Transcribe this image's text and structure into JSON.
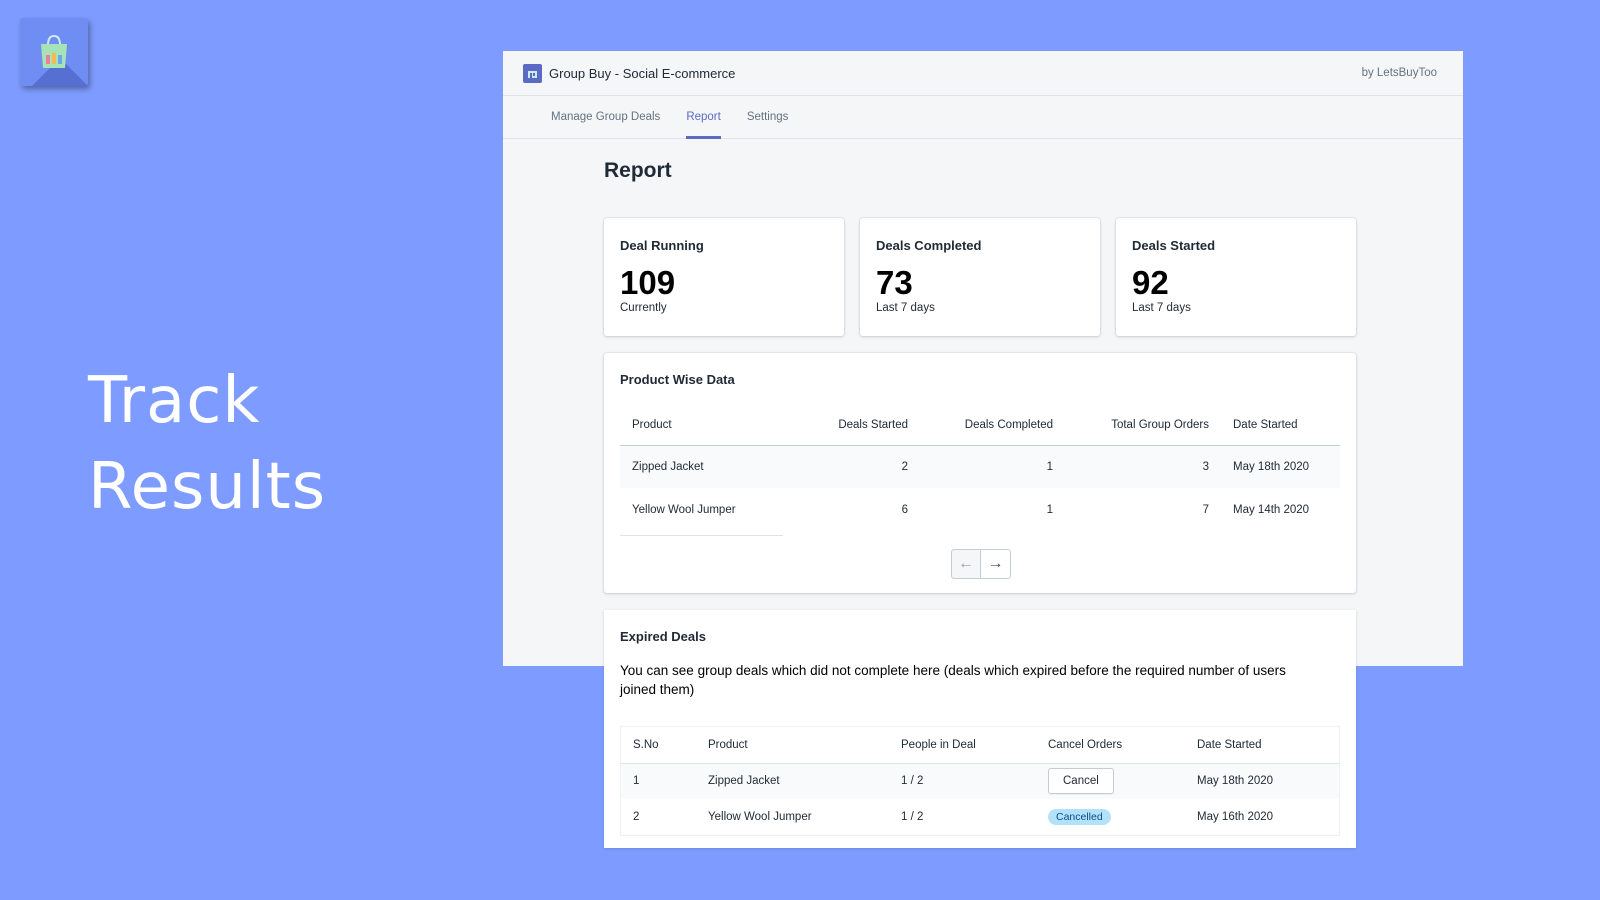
{
  "hero": {
    "line1": "Track",
    "line2": "Results"
  },
  "app": {
    "title": "Group Buy - Social E-commerce",
    "by": "by LetsBuyToo"
  },
  "tabs": [
    {
      "label": "Manage Group Deals"
    },
    {
      "label": "Report",
      "active": true
    },
    {
      "label": "Settings"
    }
  ],
  "page_title": "Report",
  "stats": [
    {
      "label": "Deal Running",
      "value": "109",
      "sub": "Currently"
    },
    {
      "label": "Deals Completed",
      "value": "73",
      "sub": "Last 7 days"
    },
    {
      "label": "Deals Started",
      "value": "92",
      "sub": "Last 7 days"
    }
  ],
  "product_wise": {
    "title": "Product Wise Data",
    "headers": [
      "Product",
      "Deals Started",
      "Deals Completed",
      "Total Group Orders",
      "Date Started"
    ],
    "rows": [
      [
        "Zipped Jacket",
        "2",
        "1",
        "3",
        "May 18th 2020"
      ],
      [
        "Yellow Wool Jumper",
        "6",
        "1",
        "7",
        "May 14th 2020"
      ]
    ],
    "pager": {
      "prev": "←",
      "next": "→"
    }
  },
  "expired": {
    "title": "Expired Deals",
    "description": "You can see group deals which did not complete here (deals which expired before the required number of users joined them)",
    "headers": [
      "S.No",
      "Product",
      "People in Deal",
      "Cancel Orders",
      "Date Started"
    ],
    "rows": [
      {
        "sno": "1",
        "product": "Zipped Jacket",
        "people": "1 / 2",
        "action": "Cancel",
        "date": "May 18th 2020"
      },
      {
        "sno": "2",
        "product": "Yellow Wool Jumper",
        "people": "1 / 2",
        "status": "Cancelled",
        "date": "May 16th 2020"
      }
    ]
  },
  "colors": {
    "background": "#7e9cff",
    "accent": "#5c6ac4",
    "badge": "#b4e1fa"
  },
  "icons": {
    "app": "shopping-bag-icon",
    "logo": "store-icon",
    "prev": "arrow-left-icon",
    "next": "arrow-right-icon"
  }
}
